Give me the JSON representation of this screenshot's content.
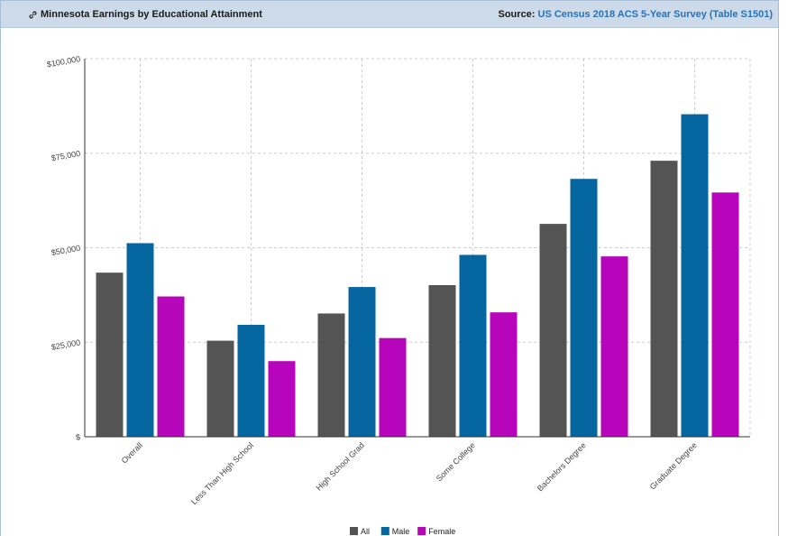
{
  "header": {
    "title": "Minnesota Earnings by Educational Attainment",
    "source_label": "Source:",
    "source_link": "US Census 2018 ACS 5-Year Survey (Table S1501)",
    "link_icon": "link-icon"
  },
  "colors": {
    "header_bg": "#ccdaea",
    "link": "#2a73b5"
  },
  "chart_data": {
    "type": "bar",
    "categories": [
      "Overall",
      "Less Than High School",
      "High School Grad",
      "Some College",
      "Bachelors Degree",
      "Graduate Degree"
    ],
    "series": [
      {
        "name": "All",
        "color": "#545454",
        "values": [
          43400,
          25400,
          32600,
          40100,
          56300,
          73000
        ]
      },
      {
        "name": "Male",
        "color": "#06669f",
        "values": [
          51200,
          29600,
          39600,
          48100,
          68200,
          85300
        ]
      },
      {
        "name": "Female",
        "color": "#b705bb",
        "values": [
          37100,
          20000,
          26100,
          32900,
          47700,
          64600
        ]
      }
    ],
    "yticks": [
      "$",
      "$25,000",
      "$50,000",
      "$75,000",
      "$100,000"
    ],
    "ylim": [
      0,
      100000
    ],
    "grid": true,
    "legend": "bottom-center",
    "title": "",
    "xlabel": "",
    "ylabel": ""
  }
}
